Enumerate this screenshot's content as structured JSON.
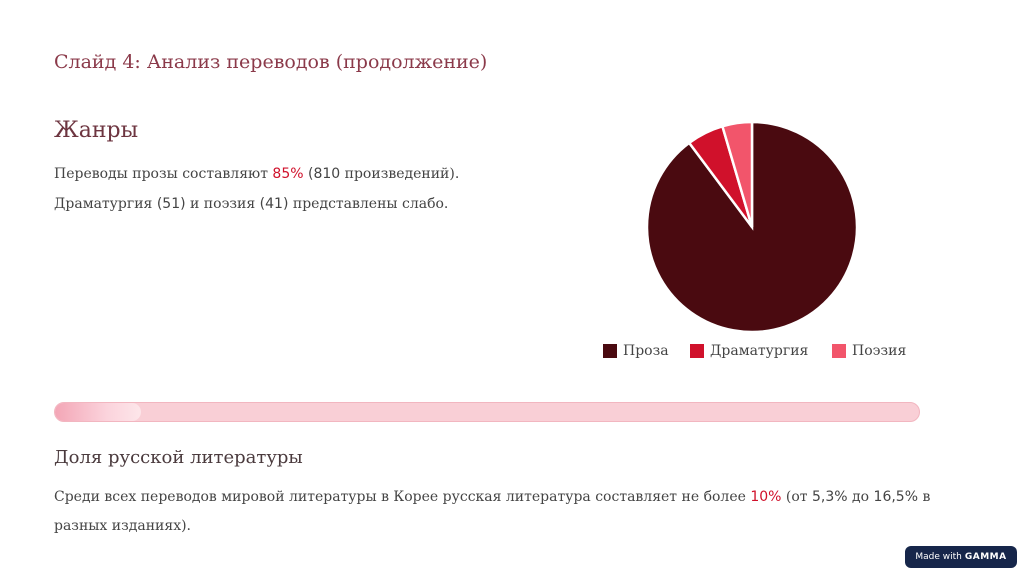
{
  "slide": {
    "title": "Слайд 4: Анализ переводов (продолжение)"
  },
  "genres": {
    "heading": "Жанры",
    "line1_prefix": "Переводы прозы составляют ",
    "line1_highlight": "85%",
    "line1_num": " (810",
    "line1_suffix": " произведений).",
    "line2_a": "Драматургия ",
    "line2_num1": "(51)",
    "line2_b": " и поэзия ",
    "line2_num2": "(41)",
    "line2_c": " представлены слабо."
  },
  "chart_data": {
    "type": "pie",
    "labels": [
      "Проза",
      "Драматургия",
      "Поэзия"
    ],
    "values": [
      810,
      51,
      41
    ],
    "colors": [
      "#4a0a10",
      "#d0112b",
      "#f2556b"
    ],
    "legend": "bottom"
  },
  "progress": {
    "value": 0.1
  },
  "russian": {
    "heading": "Доля русской литературы",
    "text_a": "Среди всех переводов мировой литературы в Корее русская литература составляет не более ",
    "highlight": "10%",
    "text_b": " (от ",
    "num1": "5,3%",
    "text_c": " до ",
    "num2": "16,5%",
    "text_d": " в разных изданиях)."
  },
  "badge": {
    "made_with": "Made with",
    "brand": "GAMMA"
  }
}
